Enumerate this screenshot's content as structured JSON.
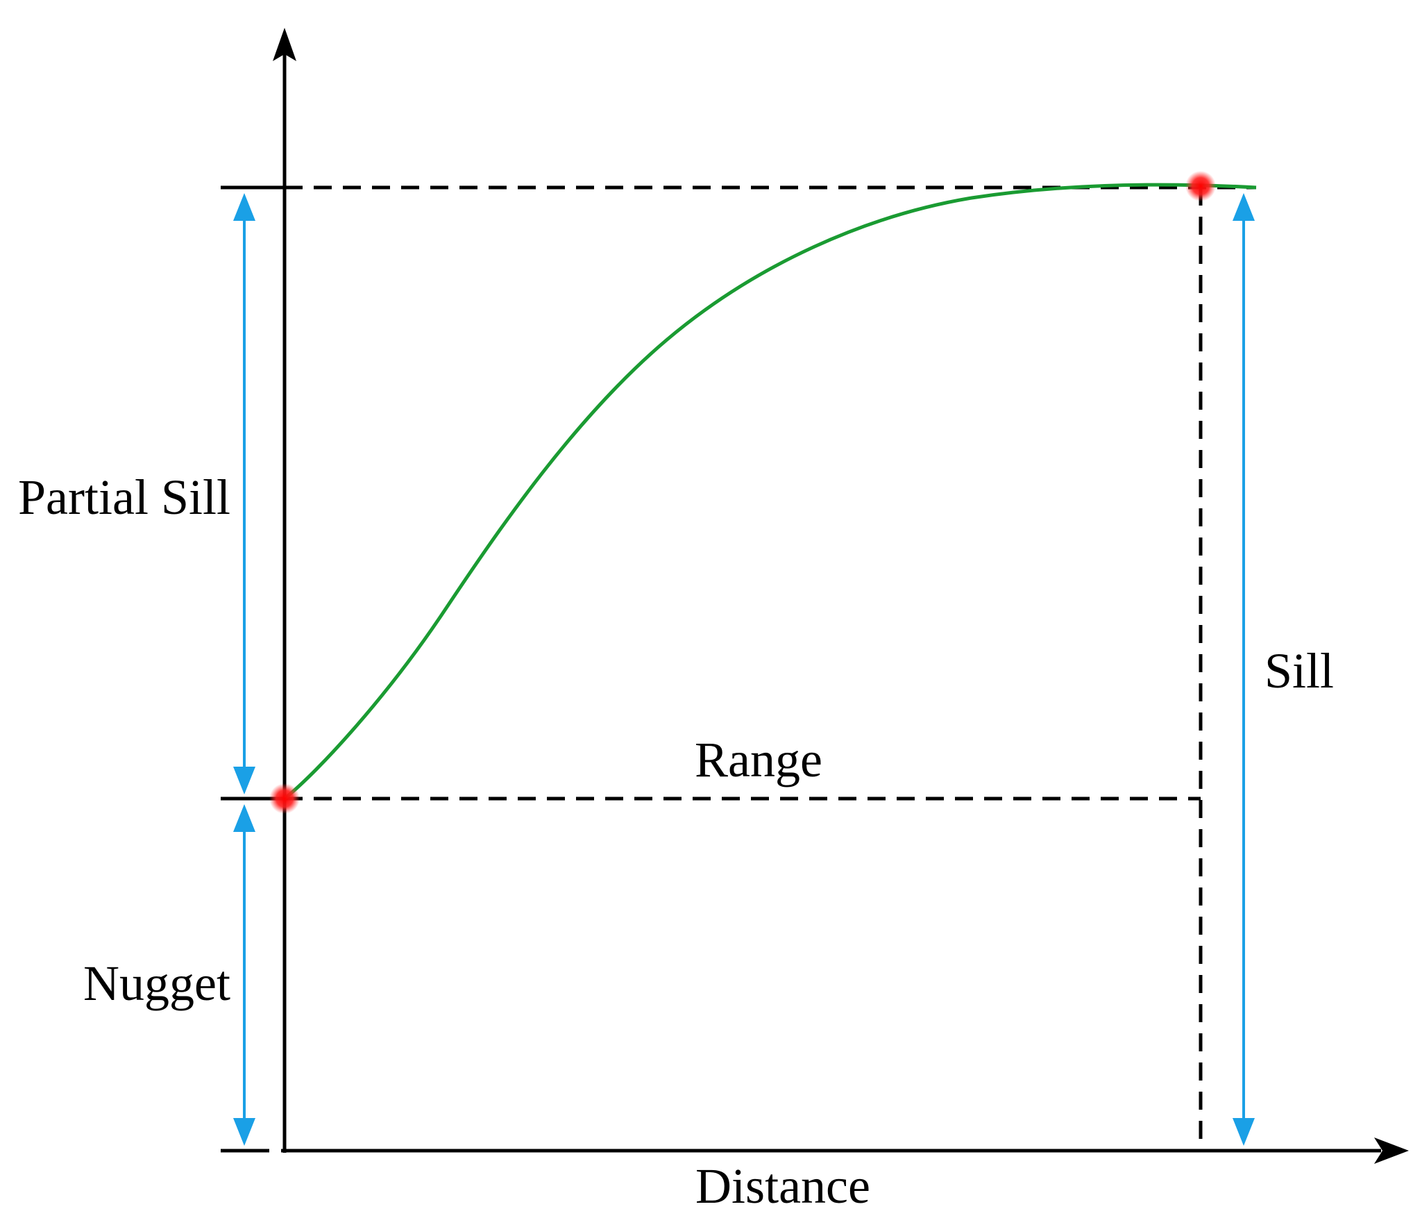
{
  "labels": {
    "partial_sill": "Partial Sill",
    "nugget": "Nugget",
    "range": "Range",
    "sill": "Sill",
    "distance": "Distance"
  },
  "colors": {
    "axis": "#000000",
    "guide": "#000000",
    "curve": "#1a9b32",
    "arrow": "#1aa0e6",
    "point": "#ff1a1a"
  },
  "icons": {
    "x_axis_end": "arrowhead-right",
    "y_axis_end": "arrowhead-up",
    "dimension_ends": "double-headed-arrow",
    "points": "red-dot"
  }
}
